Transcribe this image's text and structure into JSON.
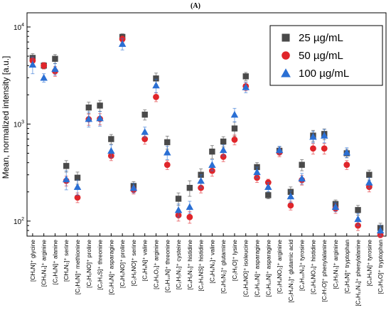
{
  "chart_data": {
    "type": "scatter",
    "panel_label": "(A)",
    "ylabel": "Mean, normalized intensity [a.u.]",
    "yscale": "log",
    "ylim": [
      70,
      14000
    ],
    "yticks": [
      {
        "value": 100,
        "base": "10",
        "exp": "2"
      },
      {
        "value": 1000,
        "base": "10",
        "exp": "3"
      },
      {
        "value": 10000,
        "base": "10",
        "exp": "4"
      }
    ],
    "legend_position": "top-right",
    "grid": false,
    "categories": [
      "[CH₄N]⁺ glycine",
      "[CH₅N₃]⁺ arginine",
      "[C₂H₆N]⁺ alanine",
      "[CH₄N₂]⁺ serine",
      "[C₂H₆N]⁺ methionine",
      "[C₂H₆NO]⁺ proline",
      "[C₂H₄S]⁺ threonine",
      "[C₂H₄N]⁺ asparagine",
      "[C₄H₆NO]⁺ proline",
      "[C₂H₆NO]⁺ serine",
      "[C₄H₈N]⁺ valine",
      "[C₄H₆O₂]⁺ arginine",
      "[C₃H₁₀N]⁺ threonine",
      "[C₂H₅N₂]⁺ cysteine",
      "[C₄H₆N₃]⁺ histidine",
      "[C₂H₅NS]⁺ histidine",
      "[C₄H₅N₂]⁺ valine",
      "[C₄H₅N₂]⁺ glutamine",
      "[C₂H₆O]⁺ lysine",
      "[C₄H₈NO]⁺ isoleucine",
      "[C₄H₁₀N]⁺ asparagine",
      "[C₃H₁₂N]⁺ asparagine",
      "[C₃H₄NO₂]⁺ arginine",
      "[C₅H₄N₃]⁺ glutamic acid",
      "[C₄H₁₀N₃]⁺ tyrosine",
      "[C₄H₆NO₂]⁺ histidine",
      "[C₇H₇O]⁺ phenylalanine",
      "[C₅H₅N₃]⁺ arginine",
      "[C₉H₈N]⁺ tryptophan",
      "[C₅H₁₁N₃]⁺ phenylalanine",
      "[C₅H₅N]⁺ tyrosine",
      "[C₉H₈O]⁺ tryptophan"
    ],
    "series": [
      {
        "name": "25 µg/mL",
        "marker": "square",
        "color": "#4a4a4a",
        "values": [
          4800,
          4000,
          4700,
          370,
          280,
          1480,
          1550,
          700,
          7900,
          230,
          1250,
          2950,
          650,
          170,
          220,
          300,
          520,
          660,
          900,
          3100,
          360,
          185,
          530,
          200,
          380,
          760,
          790,
          150,
          500,
          130,
          300,
          85
        ],
        "errors": [
          500,
          300,
          500,
          50,
          40,
          200,
          200,
          80,
          600,
          25,
          150,
          400,
          100,
          25,
          40,
          45,
          80,
          80,
          150,
          300,
          40,
          15,
          50,
          25,
          50,
          100,
          100,
          15,
          50,
          15,
          35,
          10
        ]
      },
      {
        "name": "50 µg/mL",
        "marker": "circle",
        "color": "#e0252a",
        "values": [
          4500,
          4000,
          3500,
          260,
          175,
          1120,
          1130,
          470,
          7500,
          210,
          700,
          1900,
          380,
          115,
          110,
          220,
          330,
          460,
          690,
          2450,
          280,
          250,
          510,
          145,
          265,
          560,
          560,
          135,
          380,
          90,
          225,
          72
        ],
        "errors": [
          400,
          300,
          400,
          30,
          20,
          150,
          150,
          50,
          600,
          20,
          80,
          200,
          40,
          15,
          15,
          25,
          40,
          50,
          80,
          250,
          30,
          20,
          50,
          15,
          30,
          70,
          70,
          15,
          40,
          10,
          25,
          8
        ]
      },
      {
        "name": "100 µg/mL",
        "marker": "triangle",
        "color": "#2a6fd4",
        "values": [
          4100,
          3000,
          3700,
          270,
          225,
          1130,
          1150,
          530,
          6700,
          220,
          830,
          2500,
          510,
          130,
          140,
          260,
          380,
          540,
          1250,
          2400,
          320,
          225,
          540,
          180,
          275,
          740,
          760,
          140,
          510,
          105,
          250,
          80
        ],
        "errors": [
          800,
          300,
          500,
          60,
          40,
          200,
          200,
          80,
          900,
          25,
          100,
          400,
          80,
          20,
          20,
          40,
          50,
          70,
          200,
          300,
          40,
          25,
          50,
          25,
          35,
          100,
          120,
          15,
          60,
          15,
          30,
          10
        ]
      }
    ]
  }
}
